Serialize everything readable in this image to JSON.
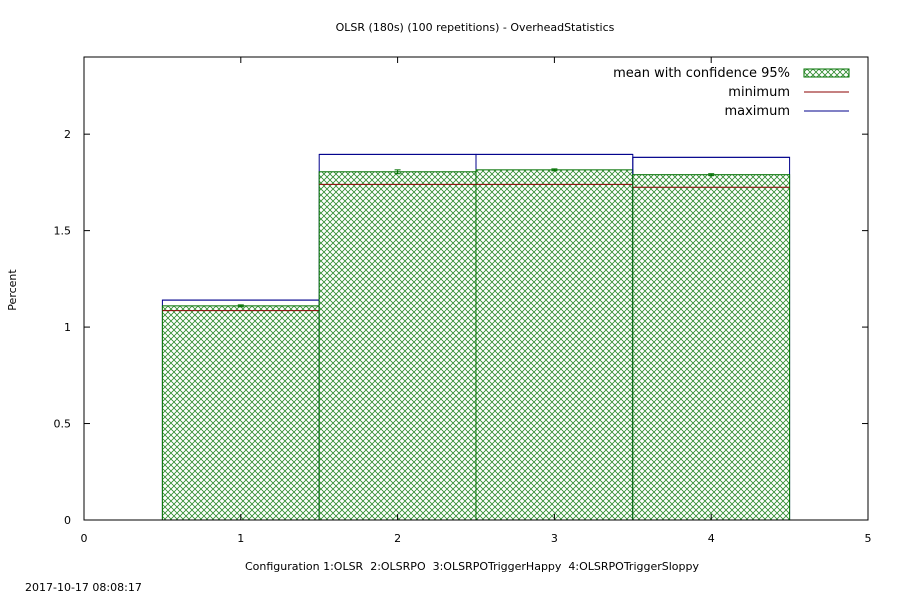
{
  "chart_data": {
    "type": "bar",
    "title": "OLSR (180s) (100 repetitions) - OverheadStatistics",
    "xlabel": "Configuration 1:OLSR  2:OLSRPO  3:OLSRPOTriggerHappy  4:OLSRPOTriggerSloppy",
    "ylabel": "Percent",
    "xlim": [
      0,
      5
    ],
    "ylim": [
      0,
      2.4
    ],
    "x_ticks": [
      "0",
      "1",
      "2",
      "3",
      "4",
      "5"
    ],
    "y_ticks": [
      "0",
      "0.5",
      "1",
      "1.5",
      "2"
    ],
    "categories": [
      1,
      2,
      3,
      4
    ],
    "bar_width": 1,
    "series": [
      {
        "name": "mean with confidence 95%",
        "values": [
          1.11,
          1.805,
          1.815,
          1.79
        ],
        "ci_low": [
          1.105,
          1.795,
          1.81,
          1.785
        ],
        "ci_high": [
          1.115,
          1.815,
          1.82,
          1.795
        ]
      },
      {
        "name": "minimum",
        "values": [
          1.085,
          1.74,
          1.74,
          1.725
        ]
      },
      {
        "name": "maximum",
        "values": [
          1.14,
          1.895,
          1.895,
          1.88
        ]
      }
    ],
    "legend_position": "top-right",
    "grid": false
  },
  "colors": {
    "mean": "#007000",
    "minimum": "#8b0000",
    "maximum": "#00008b",
    "axis": "#000000"
  },
  "timestamp": "2017-10-17 08:08:17"
}
